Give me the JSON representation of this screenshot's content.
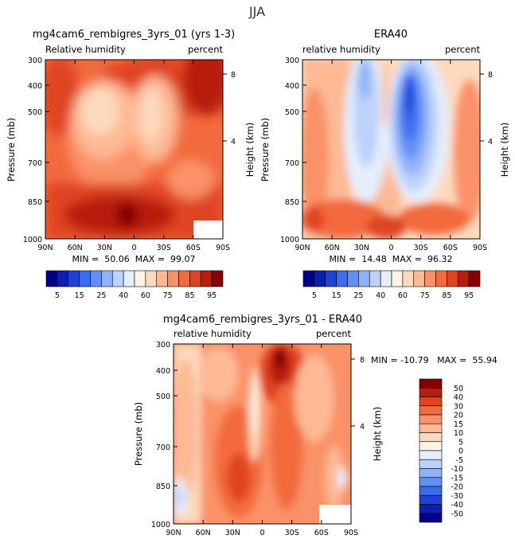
{
  "page_title": "JJA",
  "chart_data": [
    {
      "type": "heatmap",
      "id": "model",
      "title": "mg4cam6_rembigres_3yrs_01 (yrs 1-3)",
      "left_label": "Relative humidity",
      "right_label": "percent",
      "xlabel": "",
      "ylabel": "Pressure (mb)",
      "y2label": "Height (km)",
      "x_ticks": [
        "90N",
        "60N",
        "30N",
        "0",
        "30S",
        "60S",
        "90S"
      ],
      "y_ticks": [
        "300",
        "400",
        "500",
        "700",
        "850",
        "1000"
      ],
      "y2_ticks": [
        "8",
        "4"
      ],
      "stats": "MIN =  50.06  MAX =  99.07",
      "min": 50.06,
      "max": 99.07
    },
    {
      "type": "heatmap",
      "id": "era40",
      "title": "ERA40",
      "left_label": "relative humidity",
      "right_label": "percent",
      "ylabel": "Pressure (mb)",
      "y2label": "Height (km)",
      "x_ticks": [
        "90N",
        "60N",
        "30N",
        "0",
        "30S",
        "60S",
        "90S"
      ],
      "y_ticks": [
        "300",
        "400",
        "500",
        "700",
        "850",
        "1000"
      ],
      "y2_ticks": [
        "8",
        "4"
      ],
      "stats": "MIN =  14.48  MAX =  96.32",
      "min": 14.48,
      "max": 96.32
    },
    {
      "type": "heatmap",
      "id": "diff",
      "title": "mg4cam6_rembigres_3yrs_01 - ERA40",
      "left_label": "relative humidity",
      "right_label": "percent",
      "ylabel": "Pressure (mb)",
      "y2label": "Height (km)",
      "x_ticks": [
        "90N",
        "60N",
        "30N",
        "0",
        "30S",
        "60S",
        "90S"
      ],
      "y_ticks": [
        "300",
        "400",
        "500",
        "700",
        "850",
        "1000"
      ],
      "y2_ticks": [
        "8",
        "4"
      ],
      "stats": "MIN = -10.79   MAX =  55.94",
      "min": -10.79,
      "max": 55.94
    }
  ],
  "colorbar_abs": {
    "labels": [
      "5",
      "15",
      "25",
      "40",
      "60",
      "75",
      "85",
      "95"
    ],
    "colors": [
      "#00008c",
      "#0a1fb0",
      "#1f43d6",
      "#3b6bef",
      "#6190f5",
      "#8fb2f8",
      "#bcd2fb",
      "#e4eefd",
      "#fff2e6",
      "#fdd9bd",
      "#fcb994",
      "#fa9168",
      "#f26a3d",
      "#df4420",
      "#b81d0c",
      "#850000"
    ]
  },
  "colorbar_diff": {
    "labels": [
      "50",
      "40",
      "30",
      "20",
      "15",
      "10",
      "5",
      "0",
      "-5",
      "-10",
      "-15",
      "-20",
      "-30",
      "-40",
      "-50"
    ],
    "colors": [
      "#850000",
      "#b81d0c",
      "#df4420",
      "#f26a3d",
      "#fa9168",
      "#fcb994",
      "#fdd9bd",
      "#fff2e6",
      "#e4eefd",
      "#bcd2fb",
      "#8fb2f8",
      "#6190f5",
      "#3b6bef",
      "#1f43d6",
      "#0a1fb0",
      "#00008c"
    ]
  }
}
